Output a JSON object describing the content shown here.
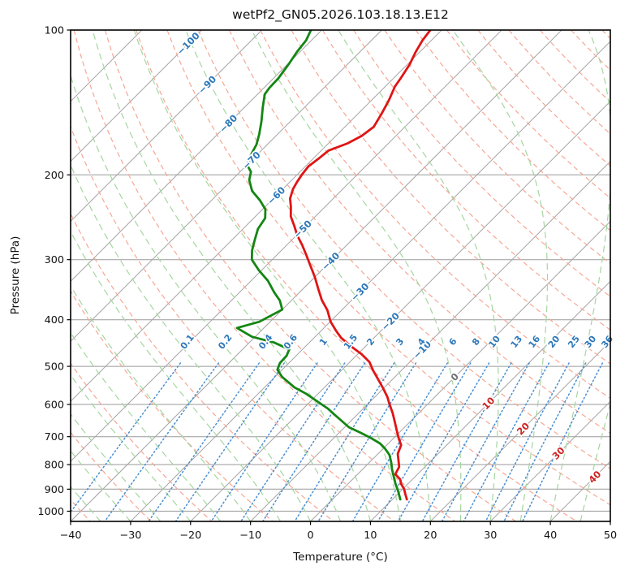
{
  "header": {
    "title": "wetPf2_GN05.2026.103.18.13.E12"
  },
  "axes": {
    "x_label": "Temperature (°C)",
    "y_label": "Pressure (hPa)",
    "x_ticks": [
      -40,
      -30,
      -20,
      -10,
      0,
      10,
      20,
      30,
      40,
      50
    ],
    "y_ticks": [
      100,
      200,
      300,
      400,
      500,
      600,
      700,
      800,
      900,
      1000
    ]
  },
  "colors": {
    "figure_bg": "#ffffff",
    "temperature_line": "#e01414",
    "dewpoint_line": "#138613",
    "isobar": "#9a9a9a",
    "isotherm": "#a3a3a3",
    "dry_adiabat": "#f5a794",
    "moist_adiabat": "#a5d6a0",
    "mixing_line": "#4a8fd3",
    "label_blue": "#2d78b9",
    "label_red": "#cd2323",
    "label_gray": "#6e6e6e",
    "axis": "#000000"
  },
  "chart_data": {
    "type": "line",
    "subtype": "skew-t-log-p",
    "title": "wetPf2_GN05.2026.103.18.13.E12",
    "xlabel": "Temperature (°C)",
    "ylabel": "Pressure (hPa)",
    "x_range_C": [
      -40,
      50
    ],
    "pressure_range_hPa": [
      100,
      1050
    ],
    "skew": "isotherms slanted 45 degrees, logarithmic pressure axis",
    "grid": true,
    "background_lines": {
      "isotherms_C": {
        "from": -110,
        "to": 50,
        "step": 10
      },
      "isotherm_labels": [
        -100,
        -90,
        -80,
        -70,
        -60,
        -50,
        -40,
        -30,
        -20,
        -10,
        0,
        10,
        20,
        30,
        40
      ],
      "dry_adiabats_theta_C": {
        "from": -40,
        "to": 190,
        "step": 10
      },
      "moist_adiabats_start_C": {
        "from": -60,
        "to": 45,
        "step": 5
      },
      "mixing_ratio_g_kg": [
        0.1,
        0.2,
        0.4,
        0.6,
        1,
        1.5,
        2,
        3,
        4,
        6,
        8,
        10,
        13,
        16,
        20,
        25,
        30,
        36
      ]
    },
    "series": [
      {
        "name": "temperature",
        "color_key": "temperature_line",
        "points_p_T": [
          [
            100,
            -61.9
          ],
          [
            105,
            -61.5
          ],
          [
            111,
            -60.7
          ],
          [
            118,
            -59.6
          ],
          [
            126,
            -58.8
          ],
          [
            131,
            -58.4
          ],
          [
            140,
            -57.1
          ],
          [
            149,
            -56.1
          ],
          [
            159,
            -55.2
          ],
          [
            166,
            -55.7
          ],
          [
            172,
            -56.8
          ],
          [
            178,
            -58.8
          ],
          [
            185,
            -59.1
          ],
          [
            192,
            -59.5
          ],
          [
            200,
            -59.2
          ],
          [
            207,
            -58.8
          ],
          [
            214,
            -58.3
          ],
          [
            224,
            -57.2
          ],
          [
            233,
            -55.7
          ],
          [
            244,
            -54.1
          ],
          [
            255,
            -52.0
          ],
          [
            267,
            -49.9
          ],
          [
            280,
            -47.4
          ],
          [
            294,
            -45.0
          ],
          [
            309,
            -42.6
          ],
          [
            326,
            -40.0
          ],
          [
            344,
            -37.6
          ],
          [
            364,
            -35.0
          ],
          [
            382,
            -32.4
          ],
          [
            404,
            -29.9
          ],
          [
            421,
            -27.6
          ],
          [
            436,
            -25.5
          ],
          [
            455,
            -22.3
          ],
          [
            472,
            -19.3
          ],
          [
            490,
            -16.7
          ],
          [
            510,
            -14.7
          ],
          [
            532,
            -12.4
          ],
          [
            555,
            -10.1
          ],
          [
            579,
            -7.9
          ],
          [
            600,
            -6.3
          ],
          [
            626,
            -4.3
          ],
          [
            654,
            -2.4
          ],
          [
            679,
            -0.8
          ],
          [
            706,
            0.9
          ],
          [
            729,
            2.4
          ],
          [
            760,
            3.3
          ],
          [
            790,
            4.8
          ],
          [
            809,
            5.7
          ],
          [
            819,
            5.9
          ],
          [
            838,
            6.3
          ],
          [
            858,
            7.9
          ],
          [
            878,
            8.9
          ],
          [
            899,
            10.2
          ],
          [
            920,
            11.2
          ],
          [
            945,
            12.4
          ]
        ]
      },
      {
        "name": "dewpoint",
        "color_key": "dewpoint_line",
        "points_p_T": [
          [
            100,
            -81.8
          ],
          [
            105,
            -80.9
          ],
          [
            111,
            -80.5
          ],
          [
            118,
            -79.8
          ],
          [
            126,
            -79.2
          ],
          [
            132,
            -79.1
          ],
          [
            136,
            -78.8
          ],
          [
            145,
            -76.9
          ],
          [
            155,
            -74.8
          ],
          [
            165,
            -73.0
          ],
          [
            173,
            -71.8
          ],
          [
            183,
            -70.9
          ],
          [
            191,
            -69.9
          ],
          [
            197,
            -68.2
          ],
          [
            205,
            -67.1
          ],
          [
            216,
            -64.8
          ],
          [
            226,
            -61.9
          ],
          [
            236,
            -59.5
          ],
          [
            246,
            -58.1
          ],
          [
            259,
            -57.5
          ],
          [
            273,
            -56.2
          ],
          [
            287,
            -54.9
          ],
          [
            300,
            -53.4
          ],
          [
            316,
            -50.4
          ],
          [
            332,
            -47.2
          ],
          [
            351,
            -44.2
          ],
          [
            365,
            -41.9
          ],
          [
            381,
            -40.0
          ],
          [
            404,
            -41.8
          ],
          [
            416,
            -44.5
          ],
          [
            434,
            -40.5
          ],
          [
            446,
            -35.9
          ],
          [
            461,
            -32.2
          ],
          [
            475,
            -31.6
          ],
          [
            492,
            -31.5
          ],
          [
            508,
            -30.8
          ],
          [
            526,
            -28.8
          ],
          [
            553,
            -25.0
          ],
          [
            570,
            -22.0
          ],
          [
            593,
            -18.6
          ],
          [
            612,
            -15.9
          ],
          [
            629,
            -13.9
          ],
          [
            646,
            -11.9
          ],
          [
            669,
            -9.3
          ],
          [
            687,
            -6.4
          ],
          [
            704,
            -3.9
          ],
          [
            723,
            -1.4
          ],
          [
            740,
            0.2
          ],
          [
            764,
            2.1
          ],
          [
            793,
            3.7
          ],
          [
            818,
            4.9
          ],
          [
            847,
            6.4
          ],
          [
            875,
            7.8
          ],
          [
            909,
            9.6
          ],
          [
            945,
            11.3
          ]
        ]
      }
    ]
  }
}
